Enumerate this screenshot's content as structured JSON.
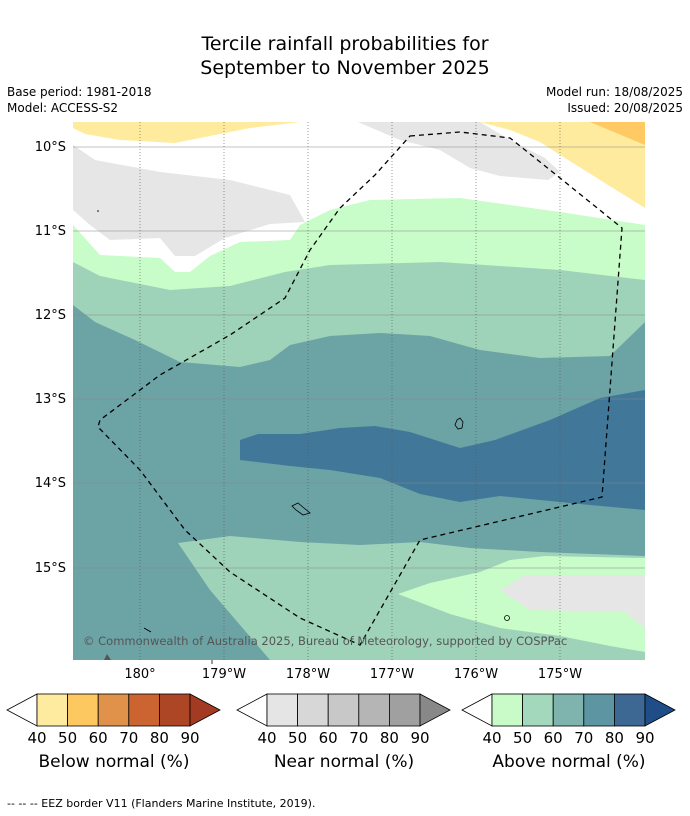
{
  "title_line1": "Tercile rainfall probabilities for",
  "title_line2": "September to November 2025",
  "meta": {
    "base_period": "Base period: 1981-2018",
    "model": "Model: ACCESS-S2",
    "model_run": "Model run: 18/08/2025",
    "issued": "Issued: 20/08/2025"
  },
  "map": {
    "lat_labels": [
      "10°S",
      "11°S",
      "12°S",
      "13°S",
      "14°S",
      "15°S"
    ],
    "lon_labels": [
      "180°",
      "179°W",
      "178°W",
      "177°W",
      "176°W",
      "175°W"
    ],
    "copyright": "© Commonwealth of Australia 2025, Bureau of Meteorology, supported by COSPPac",
    "colors": {
      "above": [
        "#c8fcc8",
        "#9ed2b9",
        "#6ca3a5",
        "#41789a",
        "#2a5f8c"
      ],
      "near": [
        "#e6e6e6"
      ],
      "below": [
        "#ffeb9e",
        "#ffc964"
      ]
    }
  },
  "legends": [
    {
      "name": "Below normal (%)",
      "ticks": [
        "40",
        "50",
        "60",
        "70",
        "80",
        "90"
      ],
      "colors": [
        "#ffeba0",
        "#fec861",
        "#e0924a",
        "#cc6431",
        "#ac4624",
        "#a33a22"
      ]
    },
    {
      "name": "Near normal (%)",
      "ticks": [
        "40",
        "50",
        "60",
        "70",
        "80",
        "90"
      ],
      "colors": [
        "#e5e5e5",
        "#d7d7d7",
        "#c8c8c8",
        "#b5b5b5",
        "#a0a0a0",
        "#888888"
      ]
    },
    {
      "name": "Above normal (%)",
      "ticks": [
        "40",
        "50",
        "60",
        "70",
        "80",
        "90"
      ],
      "colors": [
        "#c8fbc8",
        "#a3d8bd",
        "#7fb3ad",
        "#5d95a3",
        "#3e6894",
        "#1e4d88"
      ]
    }
  ],
  "footnote": "--  --  -- EEZ border V11 (Flanders Marine Institute, 2019)."
}
